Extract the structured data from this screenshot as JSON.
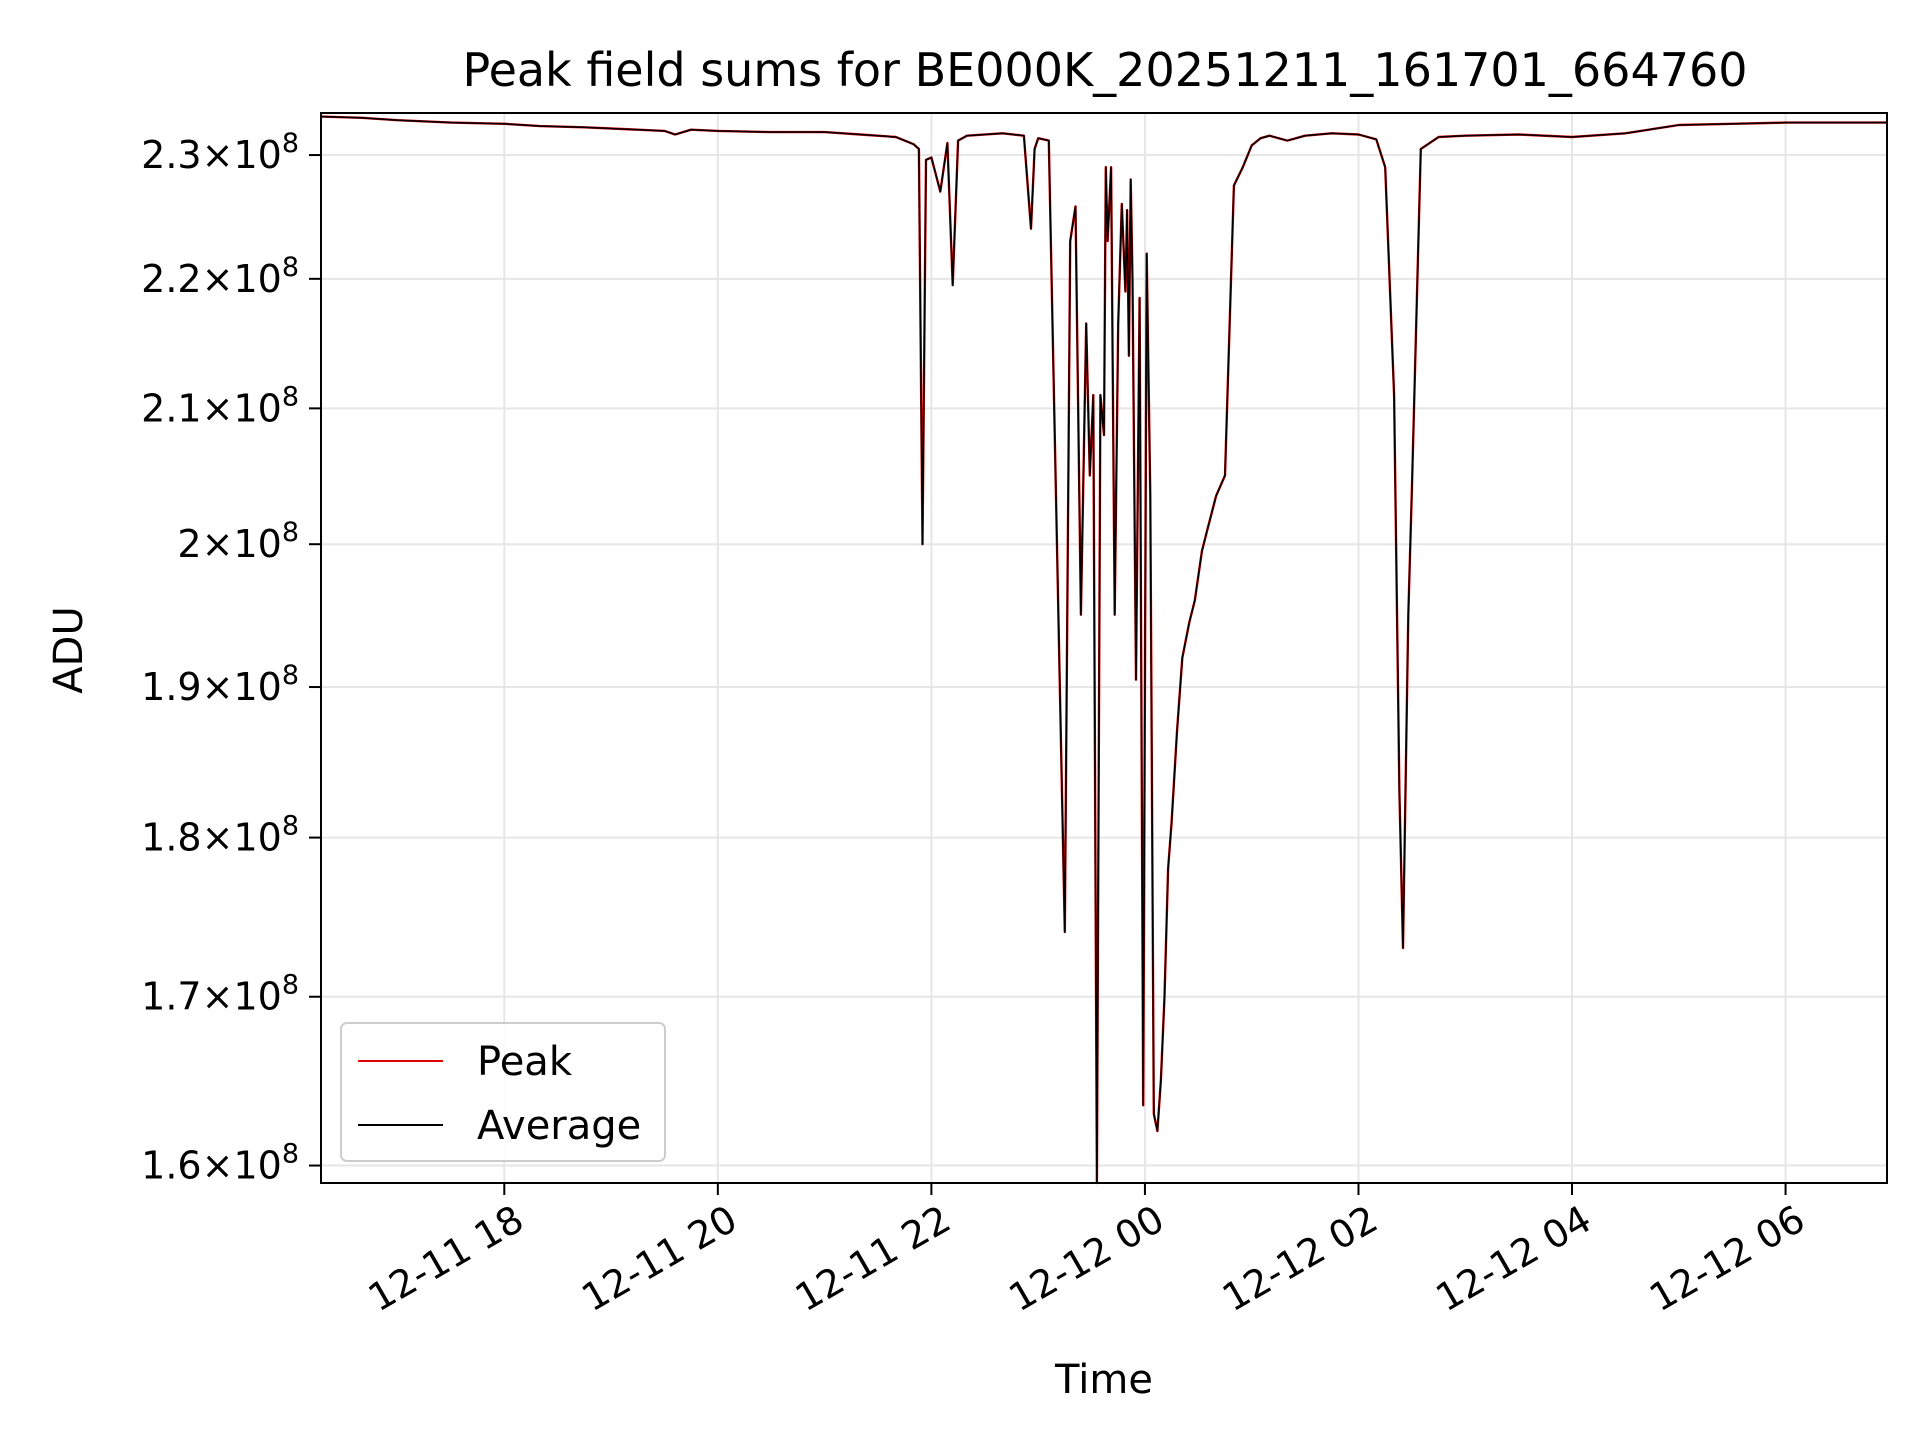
{
  "chart_data": {
    "type": "line",
    "title": "Peak field sums for BE000K_20251211_161701_664760",
    "xlabel": "Time",
    "ylabel": "ADU",
    "y_scale": "log",
    "grid": true,
    "legend_position": "lower-left",
    "xlim": [
      "2025-12-11 16:17",
      "2025-12-12 06:57"
    ],
    "ylim": [
      159000000,
      233500000
    ],
    "x_ticks": [
      {
        "label": "12-11 18",
        "value": "2025-12-11 18:00"
      },
      {
        "label": "12-11 20",
        "value": "2025-12-11 20:00"
      },
      {
        "label": "12-11 22",
        "value": "2025-12-11 22:00"
      },
      {
        "label": "12-12 00",
        "value": "2025-12-12 00:00"
      },
      {
        "label": "12-12 02",
        "value": "2025-12-12 02:00"
      },
      {
        "label": "12-12 04",
        "value": "2025-12-12 04:00"
      },
      {
        "label": "12-12 06",
        "value": "2025-12-12 06:00"
      }
    ],
    "y_ticks": [
      {
        "mantissa": "1.6",
        "exp": "8",
        "value": 160000000
      },
      {
        "mantissa": "1.7",
        "exp": "8",
        "value": 170000000
      },
      {
        "mantissa": "1.8",
        "exp": "8",
        "value": 180000000
      },
      {
        "mantissa": "1.9",
        "exp": "8",
        "value": 190000000
      },
      {
        "mantissa": "2",
        "exp": "8",
        "value": 200000000
      },
      {
        "mantissa": "2.1",
        "exp": "8",
        "value": 210000000
      },
      {
        "mantissa": "2.2",
        "exp": "8",
        "value": 220000000
      },
      {
        "mantissa": "2.3",
        "exp": "8",
        "value": 230000000
      }
    ],
    "x": [
      "2025-12-11 16:17",
      "2025-12-11 16:40",
      "2025-12-11 17:00",
      "2025-12-11 17:30",
      "2025-12-11 18:00",
      "2025-12-11 18:20",
      "2025-12-11 18:45",
      "2025-12-11 19:00",
      "2025-12-11 19:30",
      "2025-12-11 19:36",
      "2025-12-11 19:45",
      "2025-12-11 20:00",
      "2025-12-11 20:30",
      "2025-12-11 21:00",
      "2025-12-11 21:20",
      "2025-12-11 21:40",
      "2025-12-11 21:50",
      "2025-12-11 21:53",
      "2025-12-11 21:55",
      "2025-12-11 21:57",
      "2025-12-11 22:00",
      "2025-12-11 22:05",
      "2025-12-11 22:09",
      "2025-12-11 22:12",
      "2025-12-11 22:15",
      "2025-12-11 22:20",
      "2025-12-11 22:40",
      "2025-12-11 22:52",
      "2025-12-11 22:56",
      "2025-12-11 22:58",
      "2025-12-11 23:00",
      "2025-12-11 23:06",
      "2025-12-11 23:15",
      "2025-12-11 23:18",
      "2025-12-11 23:21",
      "2025-12-11 23:24",
      "2025-12-11 23:27",
      "2025-12-11 23:29",
      "2025-12-11 23:31",
      "2025-12-11 23:33",
      "2025-12-11 23:35",
      "2025-12-11 23:37",
      "2025-12-11 23:38",
      "2025-12-11 23:39",
      "2025-12-11 23:41",
      "2025-12-11 23:43",
      "2025-12-11 23:45",
      "2025-12-11 23:47",
      "2025-12-11 23:49",
      "2025-12-11 23:50",
      "2025-12-11 23:51",
      "2025-12-11 23:52",
      "2025-12-11 23:53",
      "2025-12-11 23:55",
      "2025-12-11 23:57",
      "2025-12-11 23:59",
      "2025-12-12 00:01",
      "2025-12-12 00:03",
      "2025-12-12 00:05",
      "2025-12-12 00:07",
      "2025-12-12 00:09",
      "2025-12-12 00:11",
      "2025-12-12 00:13",
      "2025-12-12 00:15",
      "2025-12-12 00:18",
      "2025-12-12 00:21",
      "2025-12-12 00:25",
      "2025-12-12 00:28",
      "2025-12-12 00:32",
      "2025-12-12 00:35",
      "2025-12-12 00:40",
      "2025-12-12 00:45",
      "2025-12-12 00:50",
      "2025-12-12 00:55",
      "2025-12-12 01:00",
      "2025-12-12 01:05",
      "2025-12-12 01:10",
      "2025-12-12 01:20",
      "2025-12-12 01:30",
      "2025-12-12 01:45",
      "2025-12-12 02:00",
      "2025-12-12 02:10",
      "2025-12-12 02:15",
      "2025-12-12 02:20",
      "2025-12-12 02:23",
      "2025-12-12 02:25",
      "2025-12-12 02:28",
      "2025-12-12 02:30",
      "2025-12-12 02:35",
      "2025-12-12 02:45",
      "2025-12-12 03:00",
      "2025-12-12 03:30",
      "2025-12-12 04:00",
      "2025-12-12 04:30",
      "2025-12-12 05:00",
      "2025-12-12 05:30",
      "2025-12-12 06:00",
      "2025-12-12 06:30",
      "2025-12-12 06:57"
    ],
    "series": [
      {
        "name": "Peak",
        "color": "#e00000",
        "values": [
          233200000,
          233100000,
          232900000,
          232700000,
          232600000,
          232400000,
          232300000,
          232200000,
          232000000,
          231700000,
          232100000,
          232000000,
          231900000,
          231900000,
          231700000,
          231500000,
          230900000,
          230500000,
          200000000,
          229600000,
          229800000,
          227000000,
          231000000,
          219500000,
          231200000,
          231600000,
          231800000,
          231600000,
          224000000,
          230500000,
          231400000,
          231200000,
          174000000,
          223000000,
          225800000,
          195000000,
          216500000,
          205000000,
          211000000,
          159000000,
          211000000,
          208000000,
          229000000,
          223000000,
          229000000,
          195000000,
          216500000,
          226000000,
          219000000,
          225500000,
          214000000,
          228000000,
          220000000,
          190500000,
          218500000,
          163500000,
          222000000,
          203500000,
          163000000,
          162000000,
          165000000,
          170000000,
          178000000,
          181000000,
          187000000,
          192000000,
          194500000,
          196000000,
          199500000,
          201000000,
          203500000,
          205000000,
          227500000,
          229000000,
          230800000,
          231400000,
          231600000,
          231200000,
          231600000,
          231800000,
          231700000,
          231300000,
          229000000,
          211000000,
          183000000,
          173000000,
          195000000,
          204000000,
          230500000,
          231500000,
          231600000,
          231700000,
          231500000,
          231800000,
          232500000,
          232600000,
          232700000,
          232700000,
          232700000
        ]
      },
      {
        "name": "Average",
        "color": "#000000",
        "values": [
          233200000,
          233100000,
          232900000,
          232700000,
          232600000,
          232400000,
          232300000,
          232200000,
          232000000,
          231700000,
          232100000,
          232000000,
          231900000,
          231900000,
          231700000,
          231500000,
          230900000,
          230500000,
          200000000,
          229600000,
          229800000,
          227000000,
          231000000,
          219500000,
          231200000,
          231600000,
          231800000,
          231600000,
          224000000,
          230500000,
          231400000,
          231200000,
          174000000,
          223000000,
          225800000,
          195000000,
          216500000,
          205000000,
          211000000,
          159000000,
          211000000,
          208000000,
          229000000,
          223000000,
          229000000,
          195000000,
          216500000,
          226000000,
          219000000,
          225500000,
          214000000,
          228000000,
          220000000,
          190500000,
          218500000,
          163500000,
          222000000,
          203500000,
          163000000,
          162000000,
          165000000,
          170000000,
          178000000,
          181000000,
          187000000,
          192000000,
          194500000,
          196000000,
          199500000,
          201000000,
          203500000,
          205000000,
          227500000,
          229000000,
          230800000,
          231400000,
          231600000,
          231200000,
          231600000,
          231800000,
          231700000,
          231300000,
          229000000,
          211000000,
          183000000,
          173000000,
          195000000,
          204000000,
          230500000,
          231500000,
          231600000,
          231700000,
          231500000,
          231800000,
          232500000,
          232600000,
          232700000,
          232700000,
          232700000
        ]
      }
    ]
  }
}
